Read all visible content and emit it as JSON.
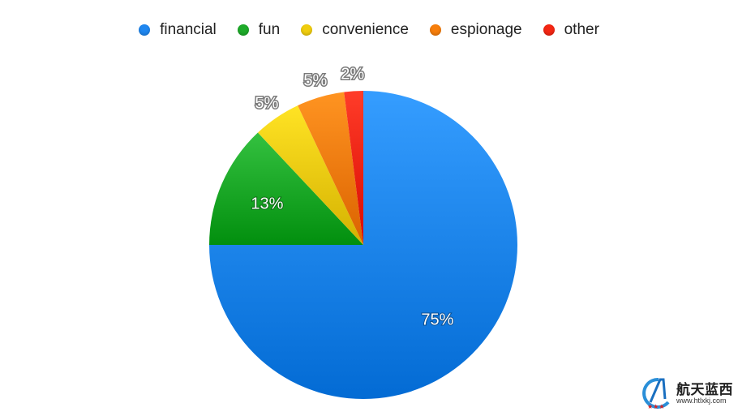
{
  "chart_data": {
    "type": "pie",
    "title": "",
    "legend_position": "top",
    "start_angle_deg": 0,
    "direction": "clockwise",
    "slices": [
      {
        "label": "financial",
        "value": 75,
        "display": "75%",
        "color": "#1f87f0"
      },
      {
        "label": "fun",
        "value": 13,
        "display": "13%",
        "color": "#1eab2a"
      },
      {
        "label": "convenience",
        "value": 5,
        "display": "5%",
        "color": "#f0cd0e"
      },
      {
        "label": "espionage",
        "value": 5,
        "display": "5%",
        "color": "#f77e0b"
      },
      {
        "label": "other",
        "value": 2,
        "display": "2%",
        "color": "#f42613"
      }
    ]
  },
  "watermark": {
    "name": "航天蓝西",
    "url": "www.htlxkj.com"
  }
}
